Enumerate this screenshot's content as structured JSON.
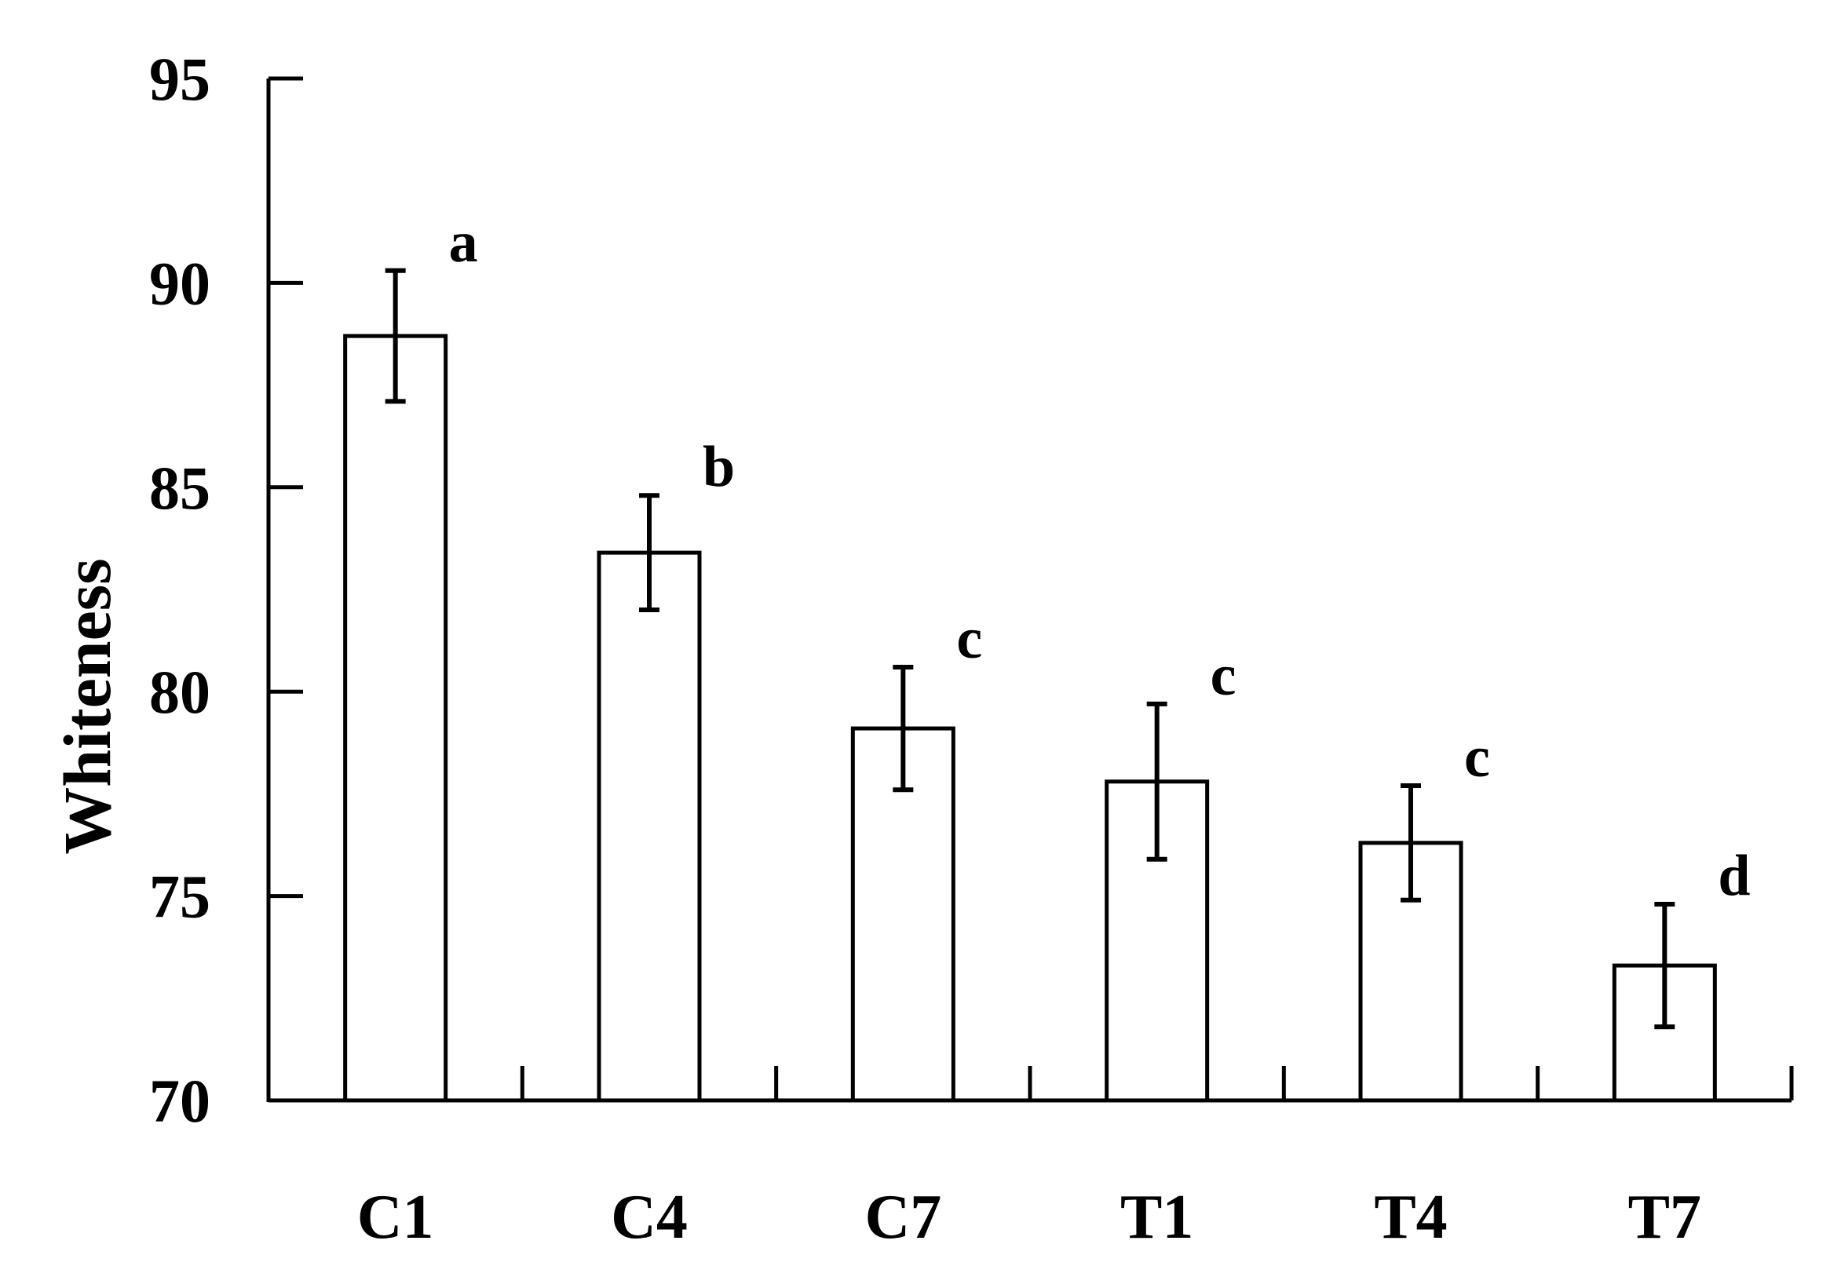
{
  "chart_data": {
    "type": "bar",
    "categories": [
      "C1",
      "C4",
      "C7",
      "T1",
      "T4",
      "T7"
    ],
    "values": [
      88.7,
      83.4,
      79.1,
      77.8,
      76.3,
      73.3
    ],
    "errors": [
      1.6,
      1.4,
      1.5,
      1.9,
      1.4,
      1.5
    ],
    "significance": [
      "a",
      "b",
      "c",
      "c",
      "c",
      "d"
    ],
    "ylabel": "Whiteness",
    "xlabel": "",
    "ylim": [
      70,
      95
    ],
    "yticks": [
      70,
      75,
      80,
      85,
      90,
      95
    ],
    "grid": false,
    "legend": "none",
    "bar_fill": "#ffffff",
    "bar_stroke": "#000000"
  }
}
